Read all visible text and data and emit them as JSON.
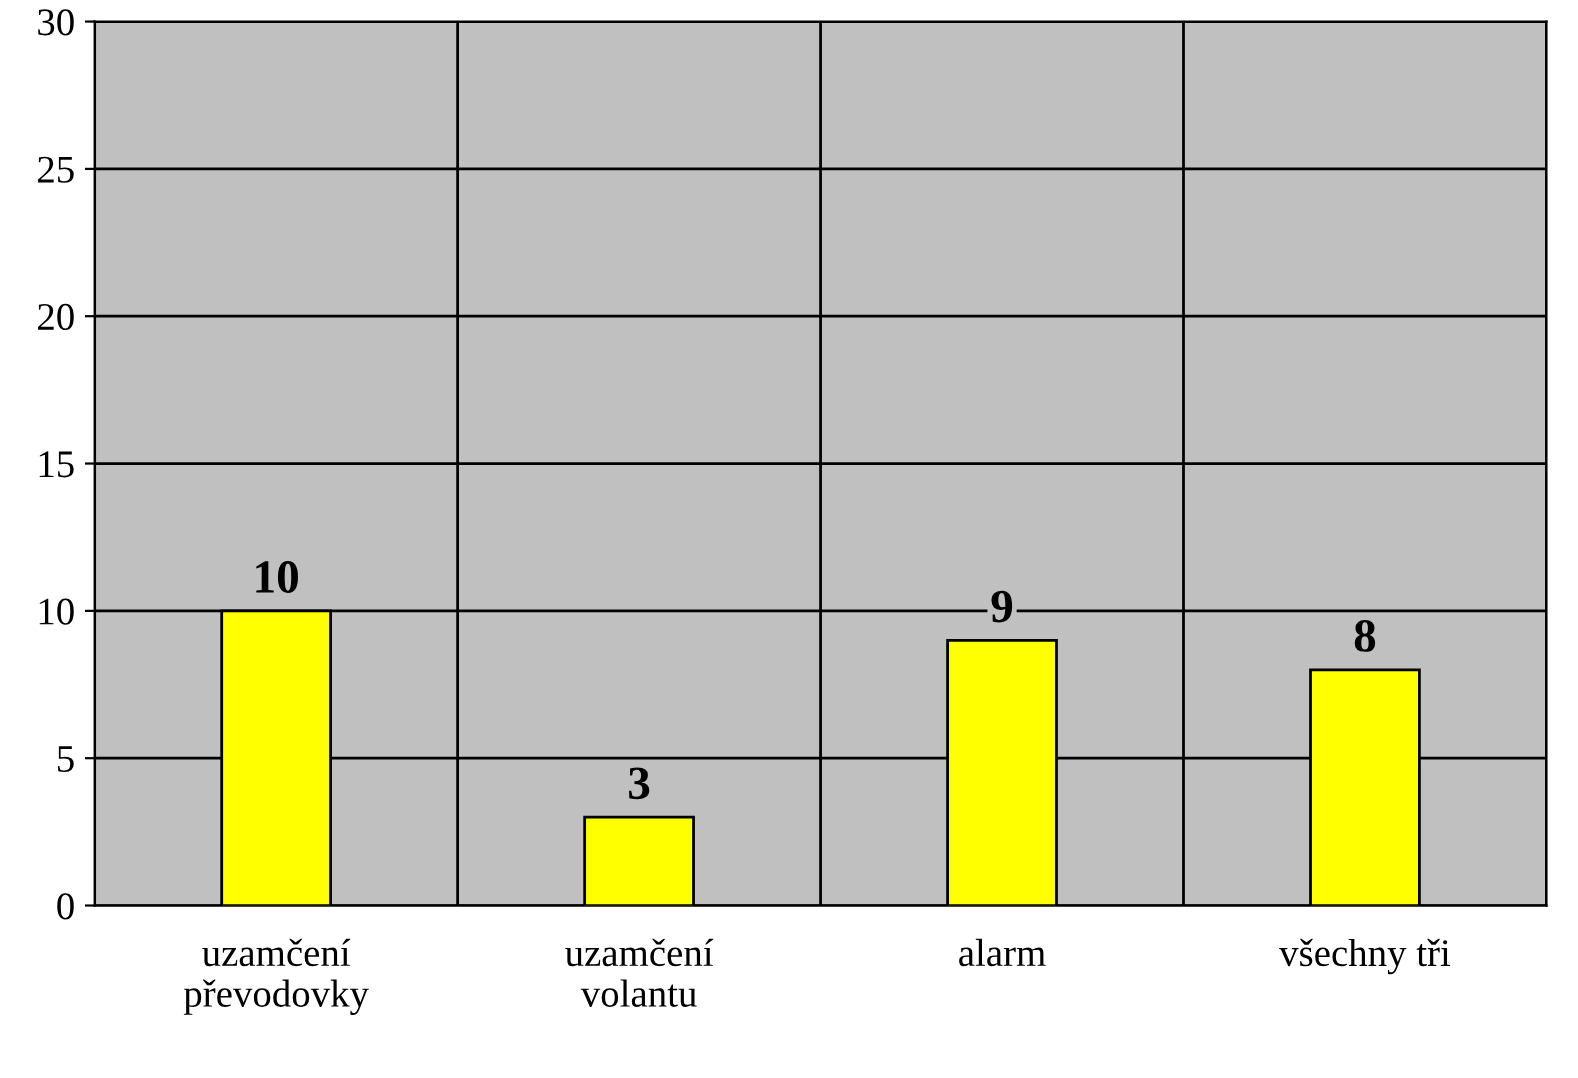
{
  "chart_data": {
    "type": "bar",
    "categories": [
      "uzamčení\npřevodovky",
      "uzamčení\nvolantu",
      "alarm",
      "všechny tři"
    ],
    "values": [
      10,
      3,
      9,
      8
    ],
    "color": "#ffff00",
    "ylim": [
      0,
      30
    ],
    "yticks": [
      0,
      5,
      10,
      15,
      20,
      25,
      30
    ],
    "grid": true,
    "data_labels": true
  }
}
